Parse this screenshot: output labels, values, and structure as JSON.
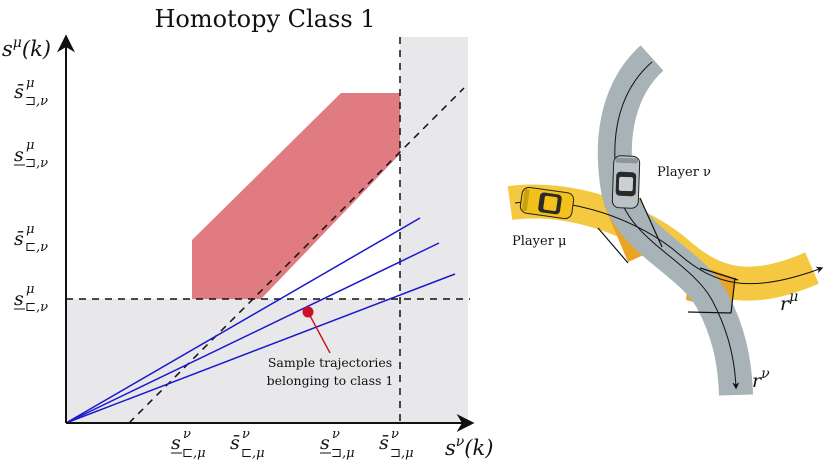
{
  "plot": {
    "title": "Homotopy Class 1",
    "y_axis_label": "s^μ(k)",
    "x_axis_label": "s^ν(k)",
    "y_ticks": [
      {
        "main": "s̄",
        "sup": "μ",
        "sub": "⊐,ν"
      },
      {
        "main": "s",
        "sup": "μ",
        "sub": "⊐,ν"
      },
      {
        "main": "s̄",
        "sup": "μ",
        "sub": "⊏,ν"
      },
      {
        "main": "s",
        "sup": "μ",
        "sub": "⊏,ν"
      }
    ],
    "x_ticks": [
      {
        "main": "s",
        "sup": "ν",
        "sub": "⊏,μ"
      },
      {
        "main": "s̄",
        "sup": "ν",
        "sub": "⊏,μ"
      },
      {
        "main": "s",
        "sup": "ν",
        "sub": "⊐,μ"
      },
      {
        "main": "s̄",
        "sup": "ν",
        "sub": "⊐,μ"
      }
    ],
    "annotation_line1": "Sample trajectories",
    "annotation_line2": "belonging to class 1",
    "colors": {
      "collision_region": "#e07880",
      "shaded_region": "#e8e8ea",
      "trajectories": "#1a1acc",
      "sample_point": "#cc1122"
    }
  },
  "scene": {
    "player_mu_label": "Player μ",
    "player_nu_label": "Player ν",
    "r_mu_label": "r^μ",
    "r_nu_label": "r^ν",
    "colors": {
      "yellow_lane": "#f5c842",
      "orange_region": "#eaa323",
      "gray_lane": "#a7b3b6",
      "car_mu": "#f2c21a",
      "car_nu": "#b9c2c6"
    }
  }
}
